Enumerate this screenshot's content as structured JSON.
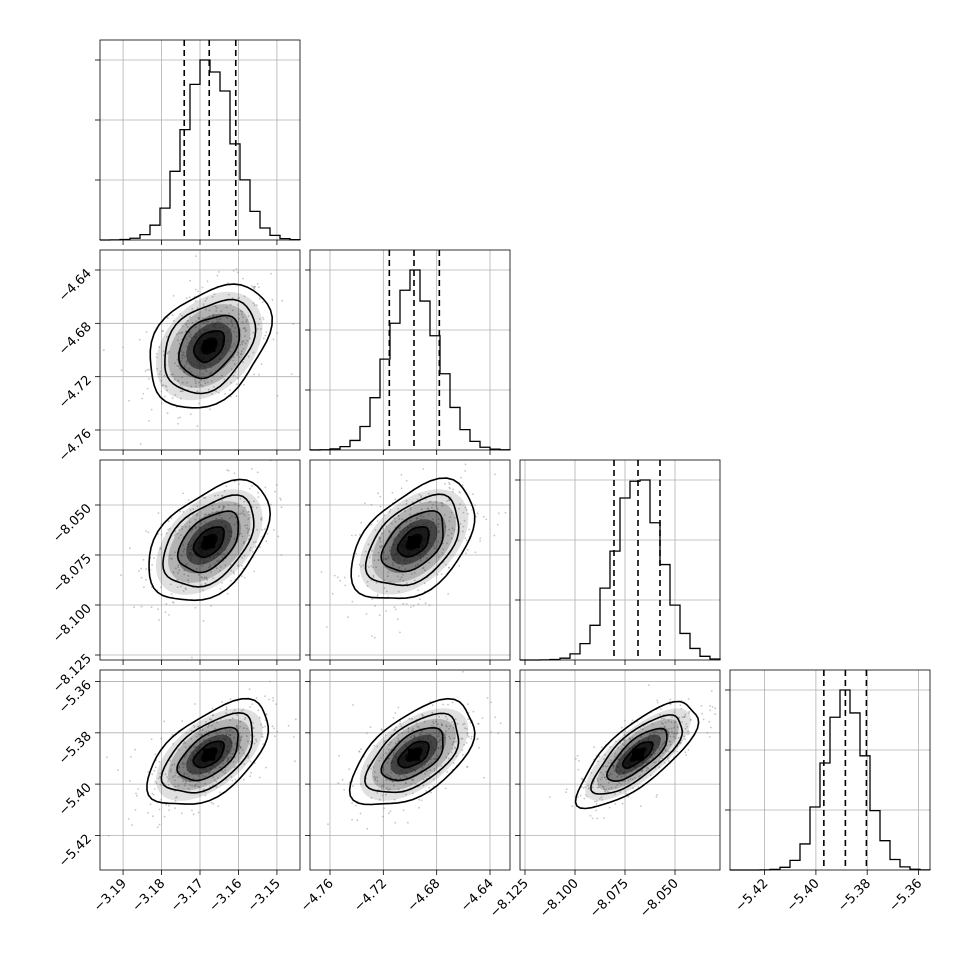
{
  "chart_data": {
    "type": "corner",
    "grid": true,
    "colors": {
      "line": "#000000",
      "grid": "#b0b0b0",
      "scatter": "#808080",
      "background": "#ffffff"
    },
    "variables": [
      {
        "range": [
          -3.196,
          -3.144
        ],
        "ticks": [
          -3.19,
          -3.18,
          -3.17,
          -3.16,
          -3.15
        ],
        "tick_labels": [
          "−3.19",
          "−3.18",
          "−3.17",
          "−3.16",
          "−3.15"
        ],
        "center": -3.1676,
        "sigma": 0.0063,
        "quantiles": [
          -3.1741,
          -3.1676,
          -3.1607
        ]
      },
      {
        "range": [
          -4.775,
          -4.625
        ],
        "ticks": [
          -4.76,
          -4.72,
          -4.68,
          -4.64
        ],
        "tick_labels": [
          "−4.76",
          "−4.72",
          "−4.68",
          "−4.64"
        ],
        "center": -4.697,
        "sigma": 0.0185,
        "quantiles": [
          -4.7155,
          -4.697,
          -4.678
        ]
      },
      {
        "range": [
          -8.1275,
          -8.0275
        ],
        "ticks": [
          -8.125,
          -8.1,
          -8.075,
          -8.05
        ],
        "tick_labels": [
          "−8.125",
          "−8.100",
          "−8.075",
          "−8.050"
        ],
        "center": -8.0685,
        "sigma": 0.012,
        "quantiles": [
          -8.0805,
          -8.0685,
          -8.0575
        ]
      },
      {
        "range": [
          -5.4335,
          -5.3555
        ],
        "ticks": [
          -5.42,
          -5.4,
          -5.38,
          -5.36
        ],
        "tick_labels": [
          "−5.42",
          "−5.40",
          "−5.38",
          "−5.36"
        ],
        "center": -5.3885,
        "sigma": 0.0082,
        "quantiles": [
          -5.3969,
          -5.3885,
          -5.3803
        ]
      }
    ],
    "correlations": [
      [
        1.0,
        0.35,
        0.45,
        0.55
      ],
      [
        0.35,
        1.0,
        0.45,
        0.55
      ],
      [
        0.45,
        0.45,
        1.0,
        0.75
      ],
      [
        0.55,
        0.55,
        0.75,
        1.0
      ]
    ],
    "histogram_bins": 20,
    "contour_levels_sigma": [
      0.5,
      1.0,
      1.5,
      2.0
    ]
  }
}
